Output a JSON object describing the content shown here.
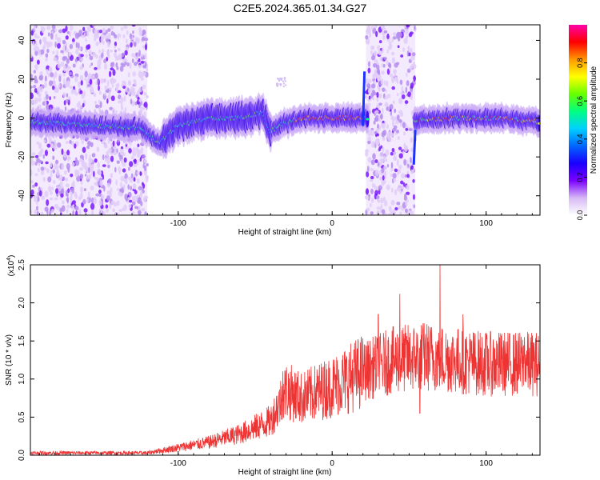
{
  "title": "C2E5.2024.365.01.34.G27",
  "chart_data": [
    {
      "type": "heatmap",
      "xlabel": "Height of straight line (km)",
      "ylabel": "Frequency (Hz)",
      "xlim": [
        -196,
        135
      ],
      "ylim": [
        -50,
        48
      ],
      "xticks": [
        -100,
        0,
        100
      ],
      "yticks": [
        -40,
        -20,
        0,
        20,
        40
      ],
      "colorbar": {
        "label": "Normalized spectral amplitude",
        "range": [
          0.0,
          1.0
        ],
        "ticks": [
          0.0,
          0.2,
          0.4,
          0.6,
          0.8
        ],
        "colors": [
          "#ffffff",
          "#d6b8f5",
          "#7a00ff",
          "#1a00ff",
          "#0066ff",
          "#00d0ff",
          "#00ff80",
          "#66ff00",
          "#ffff00",
          "#ff9900",
          "#ff0000",
          "#ff00aa"
        ]
      },
      "main_track": [
        {
          "x": -196,
          "y": -2
        },
        {
          "x": -150,
          "y": -4
        },
        {
          "x": -125,
          "y": -5
        },
        {
          "x": -112,
          "y": -13
        },
        {
          "x": -100,
          "y": -4
        },
        {
          "x": -80,
          "y": 0
        },
        {
          "x": -60,
          "y": 0
        },
        {
          "x": -45,
          "y": 3
        },
        {
          "x": -40,
          "y": -7
        },
        {
          "x": -32,
          "y": -3
        },
        {
          "x": -20,
          "y": 0
        },
        {
          "x": 0,
          "y": 0
        },
        {
          "x": 20,
          "y": 0
        },
        {
          "x": 55,
          "y": -1
        },
        {
          "x": 80,
          "y": 0
        },
        {
          "x": 110,
          "y": 0
        },
        {
          "x": 135,
          "y": -2
        }
      ],
      "noise_bands": [
        {
          "x0": -196,
          "x1": -120,
          "y0": -50,
          "y1": 48
        },
        {
          "x0": 22,
          "x1": 54,
          "y0": -50,
          "y1": 48
        }
      ]
    },
    {
      "type": "line",
      "xlabel": "Height of straight line (km)",
      "ylabel": "SNR (10 * v/v)",
      "multiplier": "(x10",
      "multiplier_exp": "4",
      "xlim": [
        -196,
        135
      ],
      "ylim": [
        0,
        2.5
      ],
      "xticks": [
        -100,
        0,
        100
      ],
      "yticks": [
        0.0,
        0.5,
        1.0,
        1.5,
        2.0,
        2.5
      ],
      "color": "#ee3333",
      "trend": [
        {
          "x": -196,
          "y": 0.03
        },
        {
          "x": -120,
          "y": 0.03
        },
        {
          "x": -100,
          "y": 0.1
        },
        {
          "x": -80,
          "y": 0.17
        },
        {
          "x": -60,
          "y": 0.28
        },
        {
          "x": -40,
          "y": 0.45
        },
        {
          "x": -30,
          "y": 0.85
        },
        {
          "x": -20,
          "y": 0.75
        },
        {
          "x": 0,
          "y": 0.9
        },
        {
          "x": 20,
          "y": 1.1
        },
        {
          "x": 40,
          "y": 1.25
        },
        {
          "x": 60,
          "y": 1.3
        },
        {
          "x": 80,
          "y": 1.25
        },
        {
          "x": 100,
          "y": 1.2
        },
        {
          "x": 135,
          "y": 1.2
        }
      ],
      "spikes": [
        {
          "x": -32,
          "y": 1.1
        },
        {
          "x": 30,
          "y": 1.85
        },
        {
          "x": 44,
          "y": 2.12
        },
        {
          "x": 50,
          "y": 1.55
        },
        {
          "x": 70,
          "y": 2.55
        },
        {
          "x": 85,
          "y": 1.85
        },
        {
          "x": 125,
          "y": 1.55
        },
        {
          "x": 57,
          "y": 0.55
        }
      ]
    }
  ]
}
